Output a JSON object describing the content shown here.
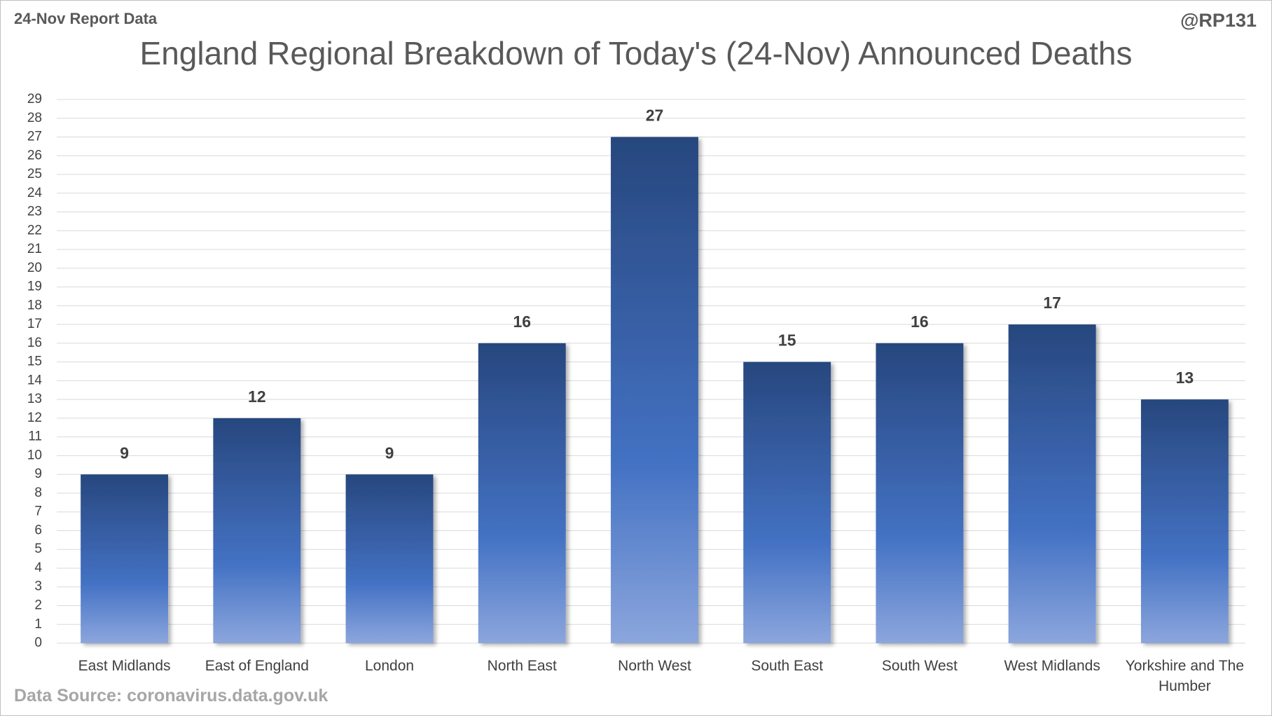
{
  "header": "24-Nov Report Data",
  "handle": "@RP131",
  "source": "Data Source: coronavirus.data.gov.uk",
  "chart_data": {
    "type": "bar",
    "title": "England Regional Breakdown of Today's (24-Nov) Announced Deaths",
    "categories": [
      "East Midlands",
      "East of England",
      "London",
      "North East",
      "North West",
      "South East",
      "South West",
      "West Midlands",
      "Yorkshire and The Humber"
    ],
    "values": [
      9,
      12,
      9,
      16,
      27,
      15,
      16,
      17,
      13
    ],
    "color": "#4472c4",
    "ylim": [
      0,
      29
    ],
    "yticks": [
      0,
      1,
      2,
      3,
      4,
      5,
      6,
      7,
      8,
      9,
      10,
      11,
      12,
      13,
      14,
      15,
      16,
      17,
      18,
      19,
      20,
      21,
      22,
      23,
      24,
      25,
      26,
      27,
      28,
      29
    ],
    "grid": true
  }
}
